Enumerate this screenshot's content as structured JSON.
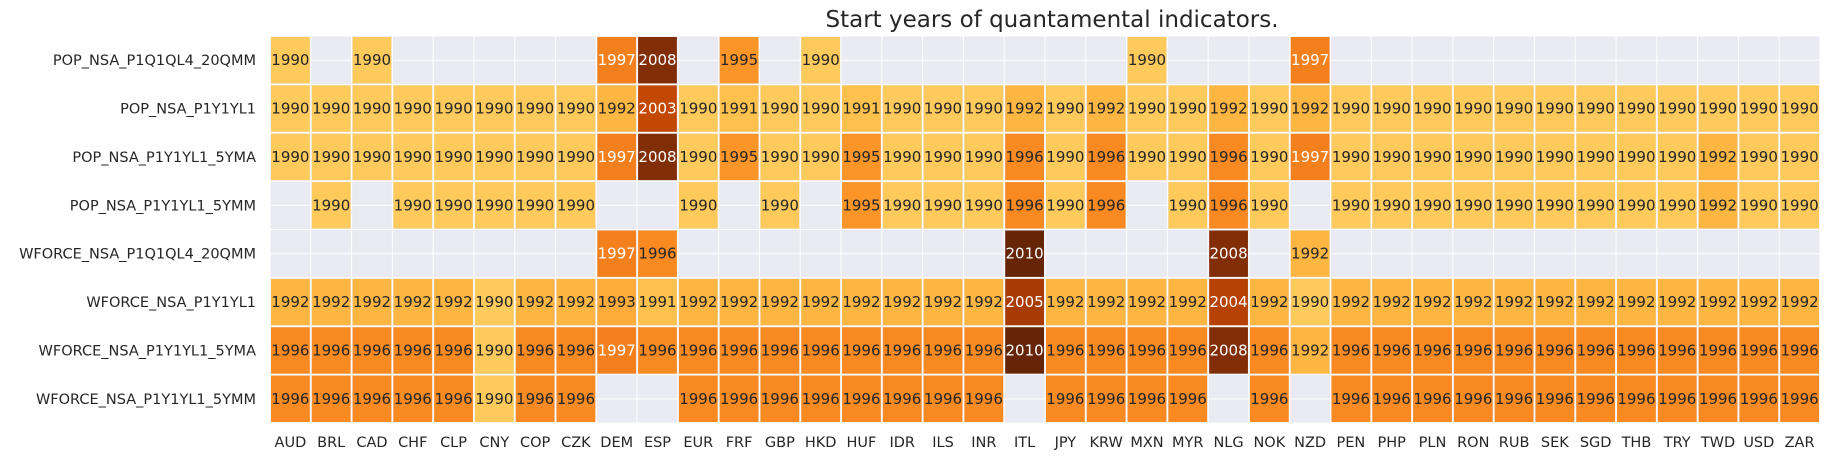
{
  "chart_data": {
    "type": "heatmap",
    "title": "Start years of quantamental indicators.",
    "xlabel": "",
    "ylabel": "",
    "colorscale": "YlOrBr",
    "value_range": [
      1990,
      2010
    ],
    "empty_color": "#eaeaf2",
    "grid": true,
    "columns": [
      "AUD",
      "BRL",
      "CAD",
      "CHF",
      "CLP",
      "CNY",
      "COP",
      "CZK",
      "DEM",
      "ESP",
      "EUR",
      "FRF",
      "GBP",
      "HKD",
      "HUF",
      "IDR",
      "ILS",
      "INR",
      "ITL",
      "JPY",
      "KRW",
      "MXN",
      "MYR",
      "NLG",
      "NOK",
      "NZD",
      "PEN",
      "PHP",
      "PLN",
      "RON",
      "RUB",
      "SEK",
      "SGD",
      "THB",
      "TRY",
      "TWD",
      "USD",
      "ZAR"
    ],
    "rows": [
      {
        "name": "POP_NSA_P1Q1QL4_20QMM",
        "values": [
          1990,
          null,
          1990,
          null,
          null,
          null,
          null,
          null,
          1997,
          2008,
          null,
          1995,
          null,
          1990,
          null,
          null,
          null,
          null,
          null,
          null,
          null,
          1990,
          null,
          null,
          null,
          1997,
          null,
          null,
          null,
          null,
          null,
          null,
          null,
          null,
          null,
          null,
          null,
          null
        ]
      },
      {
        "name": "POP_NSA_P1Y1YL1",
        "values": [
          1990,
          1990,
          1990,
          1990,
          1990,
          1990,
          1990,
          1990,
          1992,
          2003,
          1990,
          1991,
          1990,
          1990,
          1991,
          1990,
          1990,
          1990,
          1992,
          1990,
          1992,
          1990,
          1990,
          1992,
          1990,
          1992,
          1990,
          1990,
          1990,
          1990,
          1990,
          1990,
          1990,
          1990,
          1990,
          1990,
          1990,
          1990
        ]
      },
      {
        "name": "POP_NSA_P1Y1YL1_5YMA",
        "values": [
          1990,
          1990,
          1990,
          1990,
          1990,
          1990,
          1990,
          1990,
          1997,
          2008,
          1990,
          1995,
          1990,
          1990,
          1995,
          1990,
          1990,
          1990,
          1996,
          1990,
          1996,
          1990,
          1990,
          1996,
          1990,
          1997,
          1990,
          1990,
          1990,
          1990,
          1990,
          1990,
          1990,
          1990,
          1990,
          1992,
          1990,
          1990
        ]
      },
      {
        "name": "POP_NSA_P1Y1YL1_5YMM",
        "values": [
          null,
          1990,
          null,
          1990,
          1990,
          1990,
          1990,
          1990,
          null,
          null,
          1990,
          null,
          1990,
          null,
          1995,
          1990,
          1990,
          1990,
          1996,
          1990,
          1996,
          null,
          1990,
          1996,
          1990,
          null,
          1990,
          1990,
          1990,
          1990,
          1990,
          1990,
          1990,
          1990,
          1990,
          1992,
          1990,
          1990
        ]
      },
      {
        "name": "WFORCE_NSA_P1Q1QL4_20QMM",
        "values": [
          null,
          null,
          null,
          null,
          null,
          null,
          null,
          null,
          1997,
          1996,
          null,
          null,
          null,
          null,
          null,
          null,
          null,
          null,
          2010,
          null,
          null,
          null,
          null,
          2008,
          null,
          1992,
          null,
          null,
          null,
          null,
          null,
          null,
          null,
          null,
          null,
          null,
          null,
          null
        ]
      },
      {
        "name": "WFORCE_NSA_P1Y1YL1",
        "values": [
          1992,
          1992,
          1992,
          1992,
          1992,
          1990,
          1992,
          1992,
          1993,
          1991,
          1992,
          1992,
          1992,
          1992,
          1992,
          1992,
          1992,
          1992,
          2005,
          1992,
          1992,
          1992,
          1992,
          2004,
          1992,
          1990,
          1992,
          1992,
          1992,
          1992,
          1992,
          1992,
          1992,
          1992,
          1992,
          1992,
          1992,
          1992
        ]
      },
      {
        "name": "WFORCE_NSA_P1Y1YL1_5YMA",
        "values": [
          1996,
          1996,
          1996,
          1996,
          1996,
          1990,
          1996,
          1996,
          1997,
          1996,
          1996,
          1996,
          1996,
          1996,
          1996,
          1996,
          1996,
          1996,
          2010,
          1996,
          1996,
          1996,
          1996,
          2008,
          1996,
          1992,
          1996,
          1996,
          1996,
          1996,
          1996,
          1996,
          1996,
          1996,
          1996,
          1996,
          1996,
          1996
        ]
      },
      {
        "name": "WFORCE_NSA_P1Y1YL1_5YMM",
        "values": [
          1996,
          1996,
          1996,
          1996,
          1996,
          1990,
          1996,
          1996,
          null,
          null,
          1996,
          1996,
          1996,
          1996,
          1996,
          1996,
          1996,
          1996,
          null,
          1996,
          1996,
          1996,
          1996,
          null,
          1996,
          null,
          1996,
          1996,
          1996,
          1996,
          1996,
          1996,
          1996,
          1996,
          1996,
          1996,
          1996,
          1996
        ]
      }
    ]
  }
}
